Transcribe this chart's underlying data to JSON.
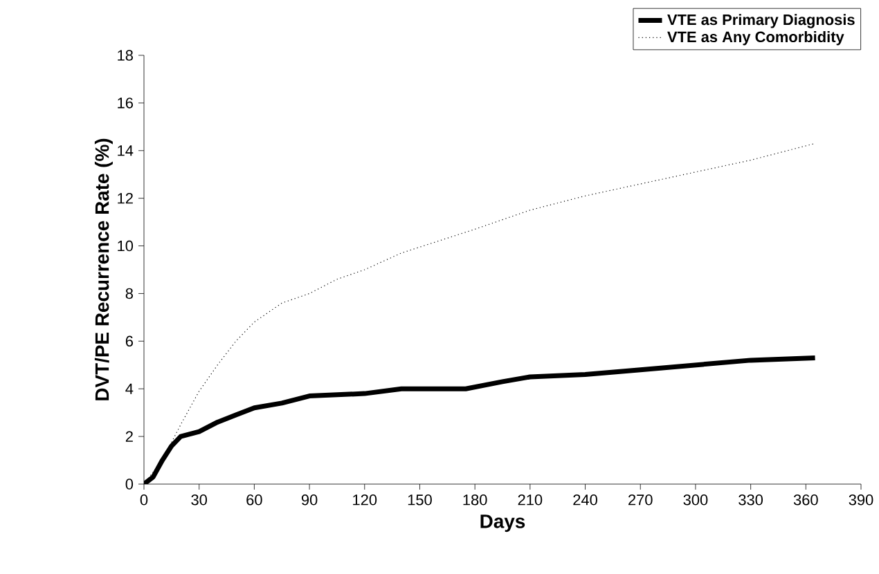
{
  "chart_data": {
    "type": "line",
    "xlabel": "Days",
    "ylabel": "DVT/PE Recurrence Rate (%)",
    "xlim": [
      0,
      390
    ],
    "xticks": [
      0,
      30,
      60,
      90,
      120,
      150,
      180,
      210,
      240,
      270,
      300,
      330,
      360,
      390
    ],
    "ylim": [
      0,
      18
    ],
    "yticks": [
      0,
      2,
      4,
      6,
      8,
      10,
      12,
      14,
      16,
      18
    ],
    "grid": false,
    "legend": "top right",
    "marker": "none",
    "series": [
      {
        "name": "VTE as Primary Diagnosis",
        "color": "#000000",
        "line_style": "solid",
        "x": [
          0,
          5,
          10,
          15,
          20,
          30,
          40,
          50,
          60,
          75,
          90,
          120,
          140,
          175,
          195,
          210,
          240,
          270,
          300,
          330,
          365
        ],
        "values": [
          0,
          0.3,
          1.0,
          1.6,
          2.0,
          2.2,
          2.6,
          2.9,
          3.2,
          3.4,
          3.7,
          3.8,
          4.0,
          4.0,
          4.3,
          4.5,
          4.6,
          4.8,
          5.0,
          5.2,
          5.3
        ]
      },
      {
        "name": "VTE as Any Comorbidity",
        "color": "#000000",
        "line_style": "dotted",
        "x": [
          0,
          10,
          20,
          30,
          40,
          50,
          60,
          75,
          90,
          105,
          120,
          140,
          160,
          180,
          210,
          240,
          270,
          300,
          330,
          365
        ],
        "values": [
          0,
          1.0,
          2.5,
          3.9,
          5.0,
          6.0,
          6.8,
          7.6,
          8.0,
          8.6,
          9.0,
          9.7,
          10.2,
          10.7,
          11.5,
          12.1,
          12.6,
          13.1,
          13.6,
          14.3
        ]
      }
    ]
  }
}
